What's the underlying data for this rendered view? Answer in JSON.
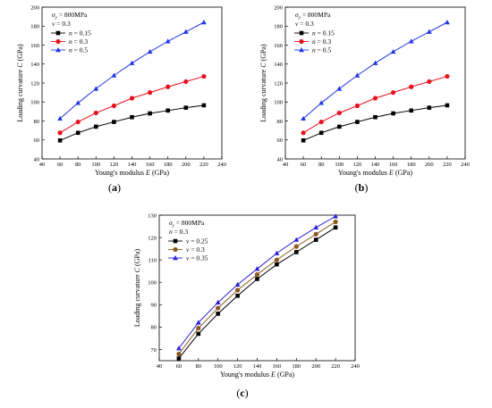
{
  "chart_data": [
    {
      "type": "line",
      "panel_label": "(a)",
      "xlabel": {
        "prefix": "Young's modulus ",
        "italic": "E",
        "suffix": " (GPa)"
      },
      "ylabel": {
        "prefix": "Loading curvature ",
        "italic": "C",
        "suffix": " (GPa)"
      },
      "xlim": [
        40,
        240
      ],
      "ylim": [
        40,
        200
      ],
      "xticks": [
        "40",
        "60",
        "80",
        "100",
        "120",
        "140",
        "160",
        "180",
        "200",
        "220",
        "240"
      ],
      "yticks": [
        "40",
        "60",
        "80",
        "100",
        "120",
        "140",
        "160",
        "180",
        "200"
      ],
      "annotations": [
        {
          "symbol": "σ",
          "sub": "y",
          "text": " = 800MPa"
        },
        {
          "symbol": "ν",
          "sub": "",
          "text": " = 0.3"
        }
      ],
      "x": [
        60,
        80,
        100,
        120,
        140,
        160,
        180,
        200,
        220
      ],
      "series": [
        {
          "name_symbol": "n",
          "name_value": " = 0.15",
          "color": "#000000",
          "marker": "square",
          "values": [
            59.5,
            67.5,
            74,
            79,
            84,
            88,
            91,
            94,
            96.5
          ]
        },
        {
          "name_symbol": "n",
          "name_value": " = 0.3",
          "color": "#e8111d",
          "marker": "circle",
          "values": [
            67.5,
            79,
            88.5,
            96,
            104,
            110,
            116,
            121.5,
            127
          ]
        },
        {
          "name_symbol": "n",
          "name_value": " = 0.5",
          "color": "#1f36e6",
          "marker": "triangle",
          "values": [
            82.5,
            99,
            114,
            128,
            141,
            153,
            164,
            174,
            184
          ]
        }
      ],
      "legend_position": "top-left"
    },
    {
      "type": "line",
      "panel_label": "(b)",
      "xlabel": {
        "prefix": "Young's modulus ",
        "italic": "E",
        "suffix": " (GPa)"
      },
      "ylabel": {
        "prefix": "Loading curvature ",
        "italic": "C",
        "suffix": " (GPa)"
      },
      "xlim": [
        40,
        240
      ],
      "ylim": [
        40,
        200
      ],
      "xticks": [
        "40",
        "60",
        "80",
        "100",
        "120",
        "140",
        "160",
        "180",
        "200",
        "220",
        "240"
      ],
      "yticks": [
        "40",
        "60",
        "80",
        "100",
        "120",
        "140",
        "160",
        "180",
        "200"
      ],
      "annotations": [
        {
          "symbol": "σ",
          "sub": "y",
          "text": " = 800MPa"
        },
        {
          "symbol": "ν",
          "sub": "",
          "text": " = 0.3"
        }
      ],
      "x": [
        60,
        80,
        100,
        120,
        140,
        160,
        180,
        200,
        220
      ],
      "series": [
        {
          "name_symbol": "n",
          "name_value": " = 0.15",
          "color": "#000000",
          "marker": "square",
          "values": [
            59.5,
            67.5,
            74,
            79,
            84,
            88,
            91,
            94,
            96.5
          ]
        },
        {
          "name_symbol": "n",
          "name_value": " = 0.3",
          "color": "#e8111d",
          "marker": "circle",
          "values": [
            67.5,
            79,
            88.5,
            96,
            104,
            110,
            116,
            121.5,
            127
          ]
        },
        {
          "name_symbol": "n",
          "name_value": " = 0.5",
          "color": "#1f36e6",
          "marker": "triangle",
          "values": [
            82.5,
            99,
            114,
            128,
            141,
            153,
            164,
            174,
            184
          ]
        }
      ],
      "legend_position": "top-left"
    },
    {
      "type": "line",
      "panel_label": "(c)",
      "xlabel": {
        "prefix": "Young's modulus ",
        "italic": "E",
        "suffix": " (GPa)"
      },
      "ylabel": {
        "prefix": "Loading curvature ",
        "italic": "C",
        "suffix": " (GPa)"
      },
      "xlim": [
        40,
        240
      ],
      "ylim": [
        65,
        130
      ],
      "xticks": [
        "40",
        "60",
        "80",
        "100",
        "120",
        "140",
        "160",
        "180",
        "200",
        "220",
        "240"
      ],
      "yticks": [
        "70",
        "80",
        "90",
        "100",
        "110",
        "120",
        "130"
      ],
      "annotations": [
        {
          "symbol": "σ",
          "sub": "y",
          "text": " = 800MPa"
        },
        {
          "symbol": "n",
          "sub": "",
          "text": " = 0.3"
        }
      ],
      "x": [
        60,
        80,
        100,
        120,
        140,
        160,
        180,
        200,
        220
      ],
      "series": [
        {
          "name_symbol": "ν",
          "name_value": " = 0.25",
          "color": "#000000",
          "marker": "square",
          "values": [
            66,
            77,
            86,
            94,
            101.5,
            108,
            113.5,
            119,
            124.5
          ]
        },
        {
          "name_symbol": "ν",
          "name_value": " = 0.3",
          "color": "#8c5a1e",
          "marker": "circle",
          "values": [
            68,
            79.5,
            88.5,
            96.5,
            103.5,
            110,
            116,
            121.5,
            127
          ]
        },
        {
          "name_symbol": "ν",
          "name_value": " = 0.35",
          "color": "#2a22d6",
          "marker": "triangle",
          "values": [
            70.5,
            82,
            91,
            99,
            106,
            113,
            119,
            124.5,
            129.5
          ]
        }
      ],
      "legend_position": "top-left"
    }
  ]
}
